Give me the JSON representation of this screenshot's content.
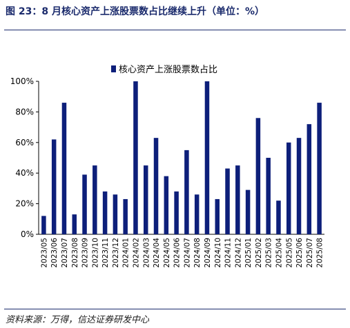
{
  "figure": {
    "title": "图 23：8 月核心资产上涨股票数占比继续上升（单位：%）",
    "source": "资料来源：万得，信达证券研发中心"
  },
  "colors": {
    "bar": "#0d1f7a",
    "accent": "#1a2a6c"
  },
  "chart_data": {
    "type": "bar",
    "categories": [
      "2023/05",
      "2023/06",
      "2023/07",
      "2023/08",
      "2023/09",
      "2023/10",
      "2023/11",
      "2023/12",
      "2024/01",
      "2024/02",
      "2024/03",
      "2024/04",
      "2024/05",
      "2024/06",
      "2024/07",
      "2024/08",
      "2024/09",
      "2024/10",
      "2024/11",
      "2024/12",
      "2025/01",
      "2025/02",
      "2025/03",
      "2025/04",
      "2025/05",
      "2025/06",
      "2025/07",
      "2025/08"
    ],
    "series": [
      {
        "name": "核心资产上涨股票数占比",
        "values": [
          12,
          62,
          86,
          13,
          39,
          45,
          28,
          26,
          23,
          100,
          45,
          63,
          38,
          28,
          55,
          26,
          100,
          23,
          43,
          45,
          29,
          76,
          50,
          22,
          60,
          63,
          72,
          86
        ]
      }
    ],
    "yticks": [
      "0%",
      "20%",
      "40%",
      "60%",
      "80%",
      "100%"
    ],
    "ylim": [
      0,
      100
    ],
    "legend_position": "top-center",
    "grid": false
  }
}
